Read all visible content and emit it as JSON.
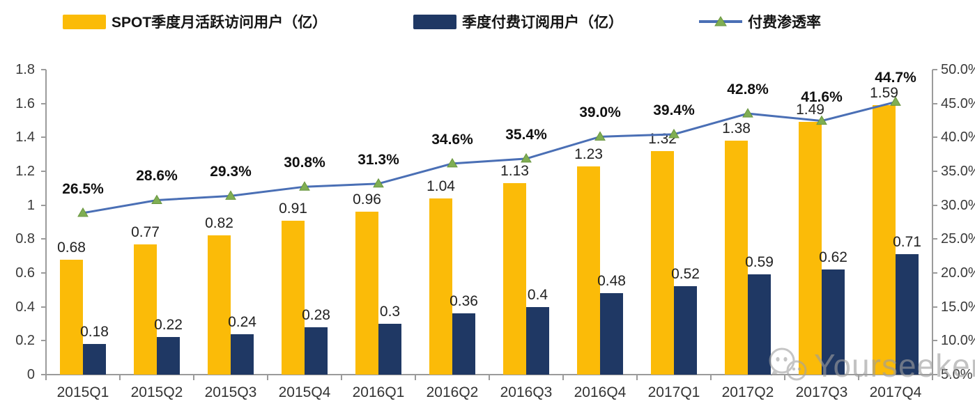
{
  "legend": [
    {
      "label": "SPOT季度月活跃访问用户（亿）",
      "type": "bar",
      "color": "#FBBB08"
    },
    {
      "label": "季度付费订阅用户（亿）",
      "type": "bar",
      "color": "#1F3864"
    },
    {
      "label": "付费渗透率",
      "type": "line",
      "color": "#4A6FB5",
      "marker_color": "#7FAE53"
    }
  ],
  "watermark": {
    "text": "Yourseeker",
    "icon": "wechat-icon"
  },
  "chart_data": {
    "type": "combo",
    "categories": [
      "2015Q1",
      "2015Q2",
      "2015Q3",
      "2015Q4",
      "2016Q1",
      "2016Q2",
      "2016Q3",
      "2016Q4",
      "2017Q1",
      "2017Q2",
      "2017Q3",
      "2017Q4"
    ],
    "series": [
      {
        "name": "SPOT季度月活跃访问用户（亿）",
        "type": "bar",
        "axis": "left",
        "color": "#FBBB08",
        "values": [
          0.68,
          0.77,
          0.82,
          0.91,
          0.96,
          1.04,
          1.13,
          1.23,
          1.32,
          1.38,
          1.49,
          1.59
        ]
      },
      {
        "name": "季度付费订阅用户（亿）",
        "type": "bar",
        "axis": "left",
        "color": "#1F3864",
        "values": [
          0.18,
          0.22,
          0.24,
          0.28,
          0.3,
          0.36,
          0.4,
          0.48,
          0.52,
          0.59,
          0.62,
          0.71
        ]
      },
      {
        "name": "付费渗透率",
        "type": "line",
        "axis": "right",
        "color": "#4A6FB5",
        "marker": "triangle",
        "marker_color": "#7FAE53",
        "values": [
          26.5,
          28.6,
          29.3,
          30.8,
          31.3,
          34.6,
          35.4,
          39.0,
          39.4,
          42.8,
          41.6,
          44.7
        ]
      }
    ],
    "left_axis": {
      "min": 0,
      "max": 1.8,
      "step": 0.2
    },
    "right_axis": {
      "min": 0,
      "max": 50,
      "step": 5,
      "suffix": "%"
    },
    "grid": false,
    "legend_position": "top",
    "title": "",
    "xlabel": "",
    "ylabel": ""
  }
}
